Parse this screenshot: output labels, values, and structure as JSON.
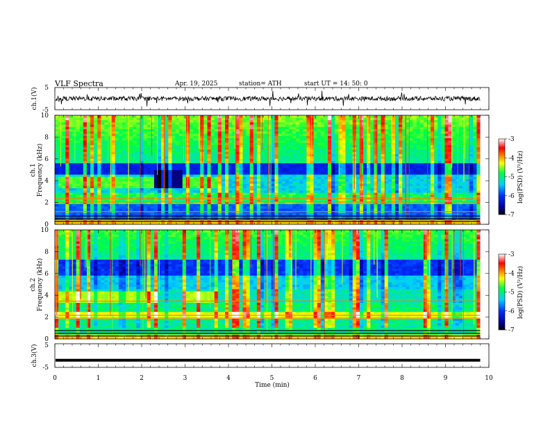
{
  "header": {
    "title": "VLF  Spectra",
    "date": "Apr. 19, 2025",
    "station": "station= ATH",
    "start": "start  UT  =   14: 50: 0"
  },
  "chart_data": [
    {
      "type": "line",
      "panel": "ch1-waveform",
      "ylabel": "ch.1(V)",
      "ylim": [
        -5,
        5
      ],
      "yticks": [
        "5",
        "-5"
      ],
      "xlim": [
        0,
        10
      ],
      "description_values": {
        "baseline": 0.0,
        "typical_amplitude": 1.0,
        "spike_amplitude": 3.5,
        "duration_min": 9.8
      }
    },
    {
      "type": "heatmap",
      "panel": "ch1-spectrogram",
      "ylabel_line1": "ch.1",
      "ylabel_line2": "Frequency  (kHz)",
      "ylim": [
        0,
        10
      ],
      "yticks": [
        "0",
        "2",
        "4",
        "6",
        "8",
        "10"
      ],
      "xlim": [
        0,
        10
      ],
      "duration_min": 9.8,
      "colorbar": {
        "label": "log(PSD) (V²/Hz)",
        "range": [
          -7,
          -3
        ],
        "ticks": [
          "-3",
          "-4",
          "-5",
          "-6",
          "-7"
        ]
      }
    },
    {
      "type": "heatmap",
      "panel": "ch2-spectrogram",
      "ylabel_line1": "ch.2",
      "ylabel_line2": "Frequency  (kHz)",
      "ylim": [
        0,
        10
      ],
      "yticks": [
        "0",
        "2",
        "4",
        "6",
        "8",
        "10"
      ],
      "xlim": [
        0,
        10
      ],
      "duration_min": 9.8,
      "colorbar": {
        "label": "log(PSD) (V²/Hz)",
        "range": [
          -7,
          -3
        ],
        "ticks": [
          "-3",
          "-4",
          "-5",
          "-6",
          "-7"
        ]
      }
    },
    {
      "type": "line",
      "panel": "ch3-waveform",
      "ylabel": "ch.3(V)",
      "ylim": [
        -5,
        5
      ],
      "yticks": [
        "5",
        "-5"
      ],
      "xlim": [
        0,
        10
      ],
      "description_values": {
        "level": -2.0,
        "duration_min": 9.8
      }
    }
  ],
  "xaxis": {
    "label": "Time  (min)",
    "ticks": [
      "0",
      "1",
      "2",
      "3",
      "4",
      "5",
      "6",
      "7",
      "8",
      "9",
      "10"
    ]
  }
}
